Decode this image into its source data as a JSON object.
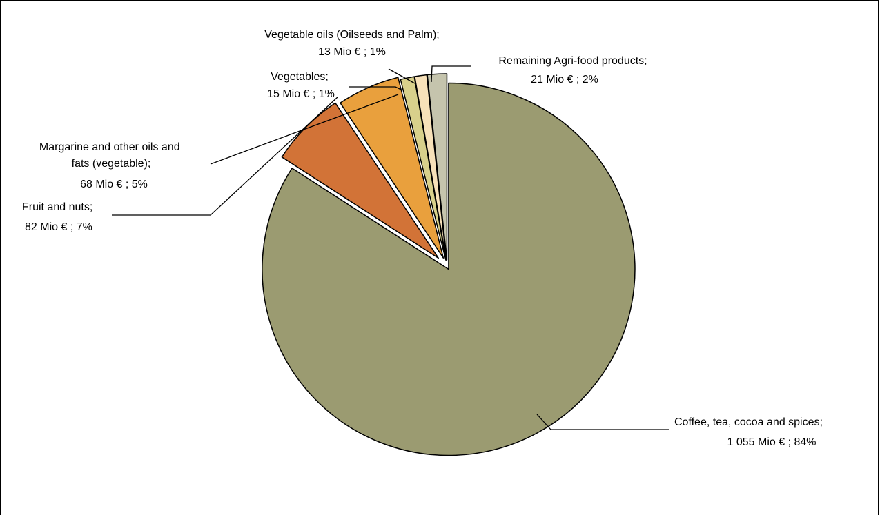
{
  "chart_data": {
    "type": "pie",
    "title": "",
    "slices": [
      {
        "label": "Coffee, tea, cocoa and spices;",
        "value_text": "1 055 Mio € ; 84%",
        "value": 1055,
        "percent": 84,
        "color": "#9b9b71"
      },
      {
        "label": "Fruit and nuts;",
        "value_text": "82 Mio € ; 7%",
        "value": 82,
        "percent": 7,
        "color": "#d27337"
      },
      {
        "label": "Margarine and other oils and fats (vegetable);",
        "value_text": "68 Mio € ; 5%",
        "value": 68,
        "percent": 5,
        "color": "#e9a03d"
      },
      {
        "label": "Vegetables;",
        "value_text": "15 Mio € ; 1%",
        "value": 15,
        "percent": 1,
        "color": "#d8d08b"
      },
      {
        "label": "Vegetable oils (Oilseeds and Palm);",
        "value_text": "13 Mio € ; 1%",
        "value": 13,
        "percent": 1,
        "color": "#f7e1b9"
      },
      {
        "label": "Remaining Agri-food products;",
        "value_text": "21 Mio € ; 2%",
        "value": 21,
        "percent": 2,
        "color": "#c5c4ad"
      }
    ],
    "start_angle_deg": 0,
    "direction": "clockwise",
    "exploded": true,
    "legend": "none"
  }
}
